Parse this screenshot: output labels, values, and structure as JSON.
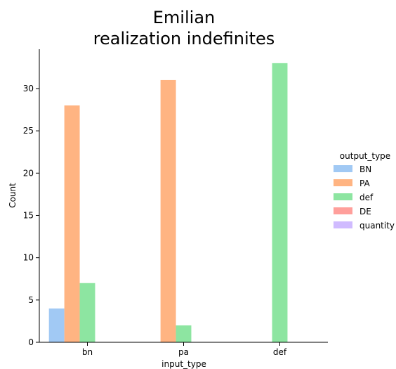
{
  "chart_data": {
    "type": "bar",
    "title": [
      "Emilian",
      "realization indefinites"
    ],
    "xlabel": "input_type",
    "ylabel": "Count",
    "categories": [
      "bn",
      "pa",
      "def"
    ],
    "ylim": [
      0,
      34.65
    ],
    "yticks": [
      0,
      5,
      10,
      15,
      20,
      25,
      30
    ],
    "grid": false,
    "legend": {
      "title": "output_type",
      "placement": "right"
    },
    "series": [
      {
        "name": "BN",
        "color": "#a1c9f4",
        "values": [
          4,
          0,
          0
        ]
      },
      {
        "name": "PA",
        "color": "#ffb482",
        "values": [
          28,
          31,
          0
        ]
      },
      {
        "name": "def",
        "color": "#8de5a1",
        "values": [
          7,
          2,
          33
        ]
      },
      {
        "name": "DE",
        "color": "#ff9f9b",
        "values": [
          0,
          0,
          0
        ]
      },
      {
        "name": "quantity",
        "color": "#d0bbff",
        "values": [
          0,
          0,
          0
        ]
      }
    ]
  }
}
